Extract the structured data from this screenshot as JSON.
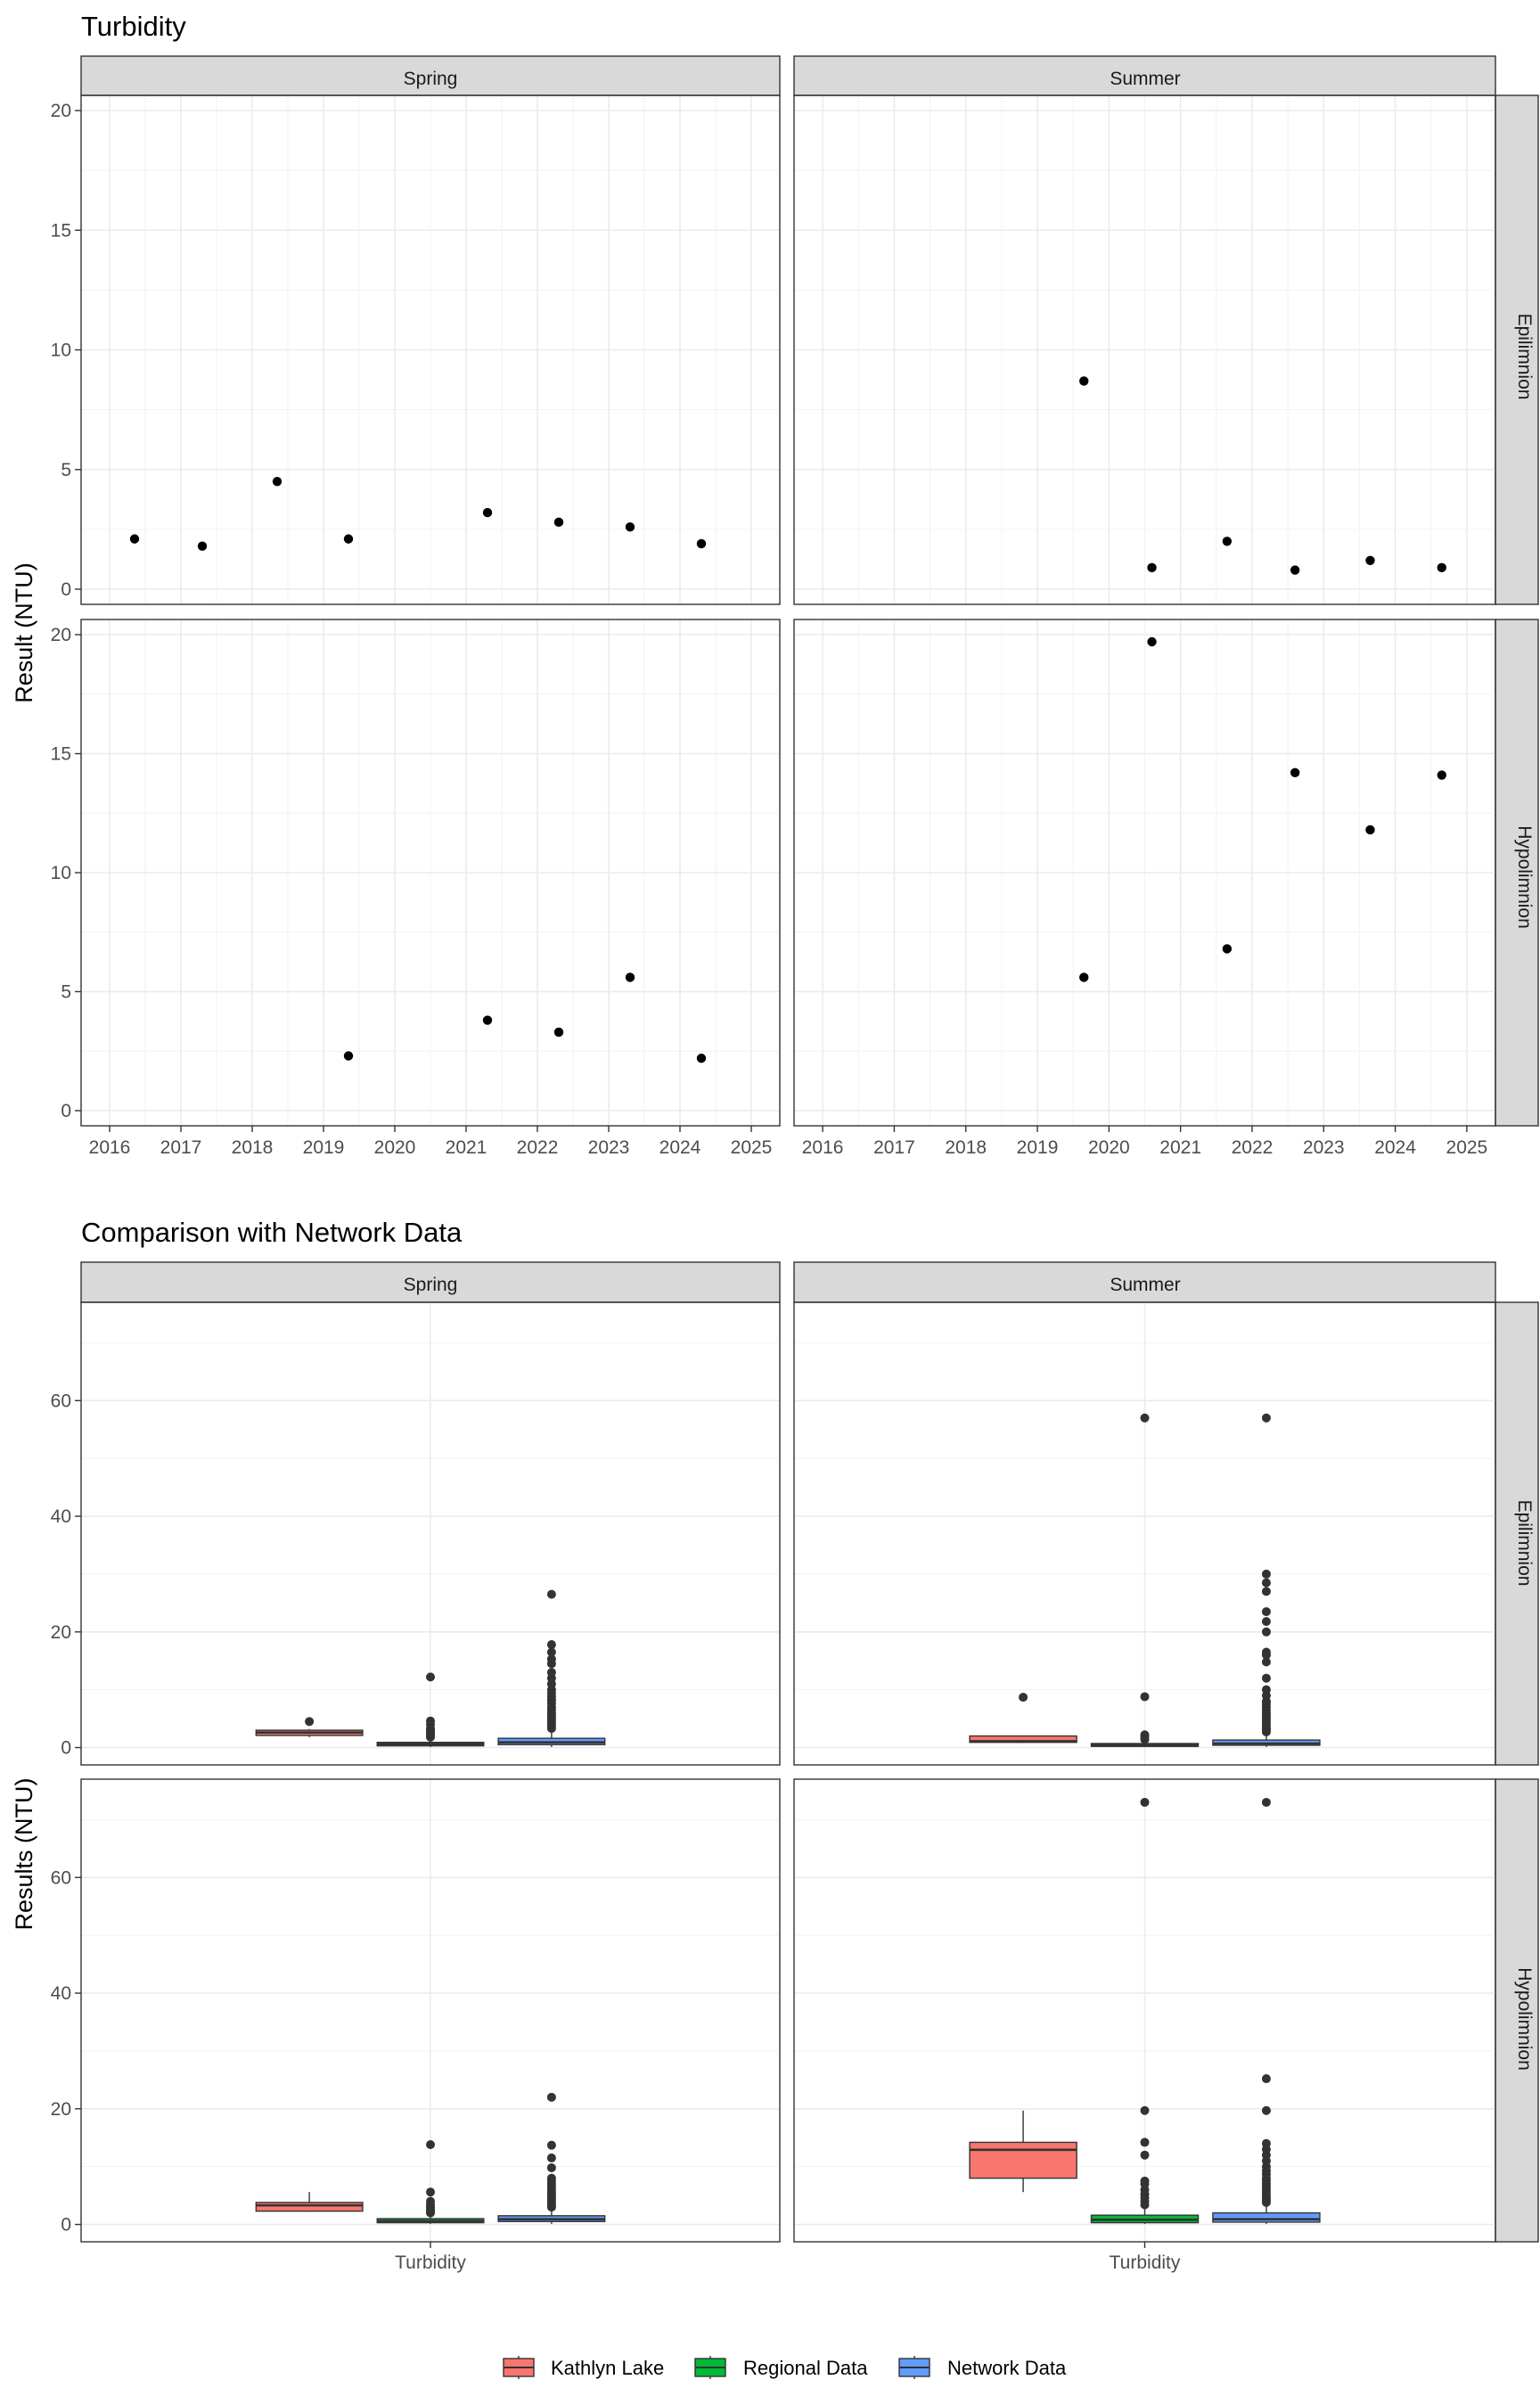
{
  "chart_data": [
    {
      "type": "scatter",
      "title": "Turbidity",
      "ylabel": "Result (NTU)",
      "xlabel": "",
      "columns": [
        "Spring",
        "Summer"
      ],
      "rows": [
        "Epilimnion",
        "Hypolimnion"
      ],
      "xlim": [
        2015.6,
        2025.4
      ],
      "ylim": [
        0,
        20
      ],
      "x_ticks": [
        2016,
        2017,
        2018,
        2019,
        2020,
        2021,
        2022,
        2023,
        2024,
        2025
      ],
      "y_ticks": [
        0,
        5,
        10,
        15,
        20
      ],
      "grid": true,
      "panels": [
        {
          "column": "Spring",
          "row": "Epilimnion",
          "points": [
            [
              2016.35,
              2.1
            ],
            [
              2017.3,
              1.8
            ],
            [
              2018.35,
              4.5
            ],
            [
              2019.35,
              2.1
            ],
            [
              2021.3,
              3.2
            ],
            [
              2022.3,
              2.8
            ],
            [
              2023.3,
              2.6
            ],
            [
              2024.3,
              1.9
            ]
          ]
        },
        {
          "column": "Summer",
          "row": "Epilimnion",
          "points": [
            [
              2019.65,
              8.7
            ],
            [
              2020.6,
              0.9
            ],
            [
              2021.65,
              2.0
            ],
            [
              2022.6,
              0.8
            ],
            [
              2023.65,
              1.2
            ],
            [
              2024.65,
              0.9
            ]
          ]
        },
        {
          "column": "Spring",
          "row": "Hypolimnion",
          "points": [
            [
              2019.35,
              2.3
            ],
            [
              2021.3,
              3.8
            ],
            [
              2022.3,
              3.3
            ],
            [
              2023.3,
              5.6
            ],
            [
              2024.3,
              2.2
            ]
          ]
        },
        {
          "column": "Summer",
          "row": "Hypolimnion",
          "points": [
            [
              2019.65,
              5.6
            ],
            [
              2020.6,
              19.7
            ],
            [
              2021.65,
              6.8
            ],
            [
              2022.6,
              14.2
            ],
            [
              2023.65,
              11.8
            ],
            [
              2024.65,
              14.1
            ]
          ]
        }
      ]
    },
    {
      "type": "box",
      "title": "Comparison with Network Data",
      "ylabel": "Results (NTU)",
      "xlabel": "",
      "categories": [
        "Turbidity"
      ],
      "columns": [
        "Spring",
        "Summer"
      ],
      "rows": [
        "Epilimnion",
        "Hypolimnion"
      ],
      "ylim": [
        -3,
        77
      ],
      "y_ticks": [
        0,
        20,
        40,
        60
      ],
      "grid": true,
      "legend": {
        "position": "bottom",
        "entries": [
          {
            "name": "Kathlyn Lake",
            "color": "#F8766D"
          },
          {
            "name": "Regional Data",
            "color": "#00BA38"
          },
          {
            "name": "Network Data",
            "color": "#619CFF"
          }
        ]
      },
      "panels": [
        {
          "column": "Spring",
          "row": "Epilimnion",
          "boxes": [
            {
              "group": "Kathlyn Lake",
              "q1": 2.1,
              "median": 2.6,
              "q3": 3.0,
              "whisker_low": 1.8,
              "whisker_high": 3.2,
              "outliers": [
                4.5
              ]
            },
            {
              "group": "Regional Data",
              "q1": 0.3,
              "median": 0.6,
              "q3": 0.9,
              "whisker_low": 0.1,
              "whisker_high": 1.5,
              "outliers": [
                1.8,
                2.1,
                2.4,
                2.7,
                3.0,
                3.3,
                4.0,
                4.6,
                12.2
              ]
            },
            {
              "group": "Network Data",
              "q1": 0.5,
              "median": 0.9,
              "q3": 1.6,
              "whisker_low": 0.1,
              "whisker_high": 3.0,
              "outliers": [
                3.3,
                3.6,
                4.0,
                4.4,
                4.8,
                5.2,
                5.6,
                6.0,
                6.5,
                7.0,
                7.6,
                8.2,
                8.8,
                9.4,
                10.0,
                11.0,
                12.0,
                13.0,
                14.5,
                15.3,
                16.5,
                17.8,
                26.5
              ]
            }
          ]
        },
        {
          "column": "Summer",
          "row": "Epilimnion",
          "boxes": [
            {
              "group": "Kathlyn Lake",
              "q1": 0.9,
              "median": 1.1,
              "q3": 2.0,
              "whisker_low": 0.8,
              "whisker_high": 2.0,
              "outliers": [
                8.7
              ]
            },
            {
              "group": "Regional Data",
              "q1": 0.2,
              "median": 0.4,
              "q3": 0.7,
              "whisker_low": 0.1,
              "whisker_high": 1.1,
              "outliers": [
                1.4,
                1.8,
                2.2,
                8.8,
                57.0
              ]
            },
            {
              "group": "Network Data",
              "q1": 0.4,
              "median": 0.7,
              "q3": 1.3,
              "whisker_low": 0.1,
              "whisker_high": 2.4,
              "outliers": [
                2.7,
                3.0,
                3.3,
                3.6,
                4.0,
                4.4,
                4.8,
                5.2,
                5.6,
                6.0,
                6.5,
                7.0,
                7.5,
                8.0,
                9.0,
                10.0,
                12.0,
                14.8,
                16.0,
                16.5,
                20.0,
                21.8,
                23.5,
                27.0,
                28.5,
                30.0,
                57.0
              ]
            }
          ]
        },
        {
          "column": "Spring",
          "row": "Hypolimnion",
          "boxes": [
            {
              "group": "Kathlyn Lake",
              "q1": 2.3,
              "median": 3.3,
              "q3": 3.8,
              "whisker_low": 2.2,
              "whisker_high": 5.6,
              "outliers": []
            },
            {
              "group": "Regional Data",
              "q1": 0.3,
              "median": 0.6,
              "q3": 1.0,
              "whisker_low": 0.1,
              "whisker_high": 1.7,
              "outliers": [
                2.0,
                2.3,
                2.6,
                3.0,
                3.4,
                4.0,
                5.6,
                13.8
              ]
            },
            {
              "group": "Network Data",
              "q1": 0.5,
              "median": 0.9,
              "q3": 1.5,
              "whisker_low": 0.1,
              "whisker_high": 2.8,
              "outliers": [
                3.0,
                3.3,
                3.6,
                4.0,
                4.4,
                4.8,
                5.2,
                5.6,
                6.0,
                6.5,
                7.0,
                7.5,
                8.0,
                9.8,
                11.5,
                13.7,
                22.0
              ]
            }
          ]
        },
        {
          "column": "Summer",
          "row": "Hypolimnion",
          "boxes": [
            {
              "group": "Kathlyn Lake",
              "q1": 8.0,
              "median": 12.9,
              "q3": 14.2,
              "whisker_low": 5.6,
              "whisker_high": 19.7,
              "outliers": []
            },
            {
              "group": "Regional Data",
              "q1": 0.3,
              "median": 0.8,
              "q3": 1.6,
              "whisker_low": 0.1,
              "whisker_high": 3.0,
              "outliers": [
                3.4,
                4.0,
                4.6,
                5.2,
                6.0,
                7.0,
                7.5,
                12.0,
                14.2,
                19.7,
                73.0
              ]
            },
            {
              "group": "Network Data",
              "q1": 0.4,
              "median": 0.9,
              "q3": 2.0,
              "whisker_low": 0.1,
              "whisker_high": 3.5,
              "outliers": [
                3.8,
                4.2,
                4.6,
                5.0,
                5.5,
                6.0,
                6.5,
                7.0,
                7.5,
                8.0,
                8.7,
                9.3,
                10.0,
                11.0,
                12.0,
                13.0,
                14.0,
                19.7,
                25.2,
                73.0
              ]
            }
          ]
        }
      ]
    }
  ]
}
